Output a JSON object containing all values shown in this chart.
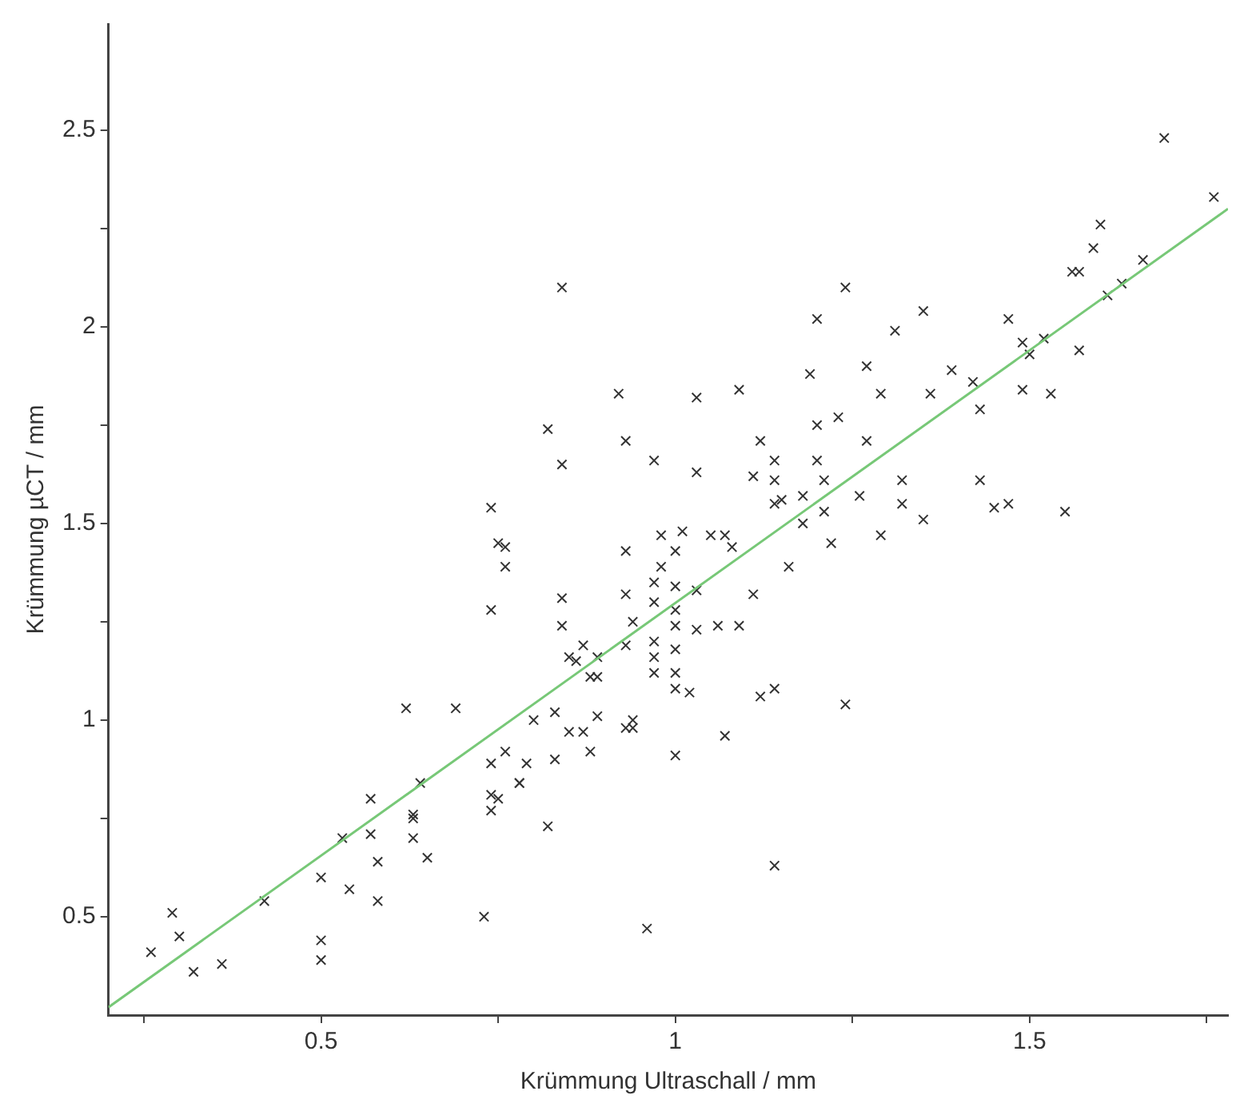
{
  "chart_data": {
    "type": "scatter",
    "xlabel": "Krümmung Ultraschall / mm",
    "ylabel": "Krümmung µCT / mm",
    "xlim": [
      0.2,
      1.78
    ],
    "ylim": [
      0.25,
      2.77
    ],
    "xticks": [
      {
        "value": 0.25,
        "label": null
      },
      0.5,
      {
        "value": 0.75,
        "label": null
      },
      {
        "value": 1,
        "label": "1"
      },
      {
        "value": 1.25,
        "label": null
      },
      1.5,
      {
        "value": 1.75,
        "label": null
      }
    ],
    "yticks": [
      0.5,
      {
        "value": 0.75,
        "label": null
      },
      {
        "value": 1,
        "label": "1"
      },
      {
        "value": 1.25,
        "label": null
      },
      1.5,
      {
        "value": 1.75,
        "label": null
      },
      {
        "value": 2,
        "label": "2"
      },
      {
        "value": 2.25,
        "label": null
      },
      2.5
    ],
    "grid": false,
    "legend": false,
    "marker": "cross",
    "series": [
      {
        "color": "#333333",
        "x": [
          0.74,
          0.75,
          0.84,
          1.24,
          1.2,
          1.19,
          1.27,
          0.92,
          1.03,
          1.09,
          0.82,
          0.93,
          1.2,
          1.23,
          1.27,
          1.12,
          0.84,
          0.97,
          1.03,
          1.14,
          1.11,
          1.14,
          1.2,
          1.21,
          1.26,
          1.15,
          1.14,
          1.18,
          1.21,
          1.18,
          0.76,
          0.98,
          1.01,
          1.05,
          1.07,
          1.08,
          0.93,
          1.0,
          1.22,
          1.69,
          1.76,
          1.6,
          1.59,
          1.56,
          1.57,
          1.66,
          1.63,
          1.61,
          1.35,
          1.31,
          1.47,
          1.49,
          1.52,
          1.5,
          1.57,
          1.39,
          1.29,
          1.36,
          1.42,
          1.43,
          1.49,
          1.53,
          1.32,
          1.43,
          1.32,
          1.35,
          1.45,
          1.47,
          1.55,
          1.29,
          0.26,
          0.29,
          0.3,
          0.32,
          0.36,
          0.42,
          0.5,
          0.5,
          0.5,
          0.54,
          0.53,
          0.57,
          0.57,
          0.58,
          0.58,
          0.64,
          0.63,
          0.63,
          0.63,
          0.65,
          0.62,
          0.69,
          0.73,
          0.74,
          0.74,
          0.74,
          0.74,
          0.76,
          0.98,
          0.97,
          1.16,
          0.84,
          0.84,
          0.93,
          0.97,
          1.0,
          1.03,
          1.0,
          1.11,
          0.94,
          1.0,
          1.03,
          1.06,
          1.09,
          0.87,
          0.85,
          0.86,
          0.89,
          0.93,
          0.97,
          0.97,
          0.97,
          1.0,
          1.0,
          1.0,
          1.02,
          0.88,
          0.89,
          1.12,
          1.14,
          1.24,
          0.8,
          0.83,
          0.85,
          0.87,
          0.89,
          0.93,
          0.94,
          0.94,
          0.88,
          0.83,
          1.07,
          1.0,
          0.76,
          0.79,
          0.78,
          0.78,
          0.75,
          0.82,
          1.14,
          0.96
        ],
        "values": [
          1.54,
          1.45,
          2.1,
          2.1,
          2.02,
          1.88,
          1.9,
          1.83,
          1.82,
          1.84,
          1.74,
          1.71,
          1.75,
          1.77,
          1.71,
          1.71,
          1.65,
          1.66,
          1.63,
          1.66,
          1.62,
          1.61,
          1.66,
          1.61,
          1.57,
          1.56,
          1.55,
          1.57,
          1.53,
          1.5,
          1.44,
          1.47,
          1.48,
          1.47,
          1.47,
          1.44,
          1.43,
          1.43,
          1.45,
          2.48,
          2.33,
          2.26,
          2.2,
          2.14,
          2.14,
          2.17,
          2.11,
          2.08,
          2.04,
          1.99,
          2.02,
          1.96,
          1.97,
          1.93,
          1.94,
          1.89,
          1.83,
          1.83,
          1.86,
          1.79,
          1.84,
          1.83,
          1.61,
          1.61,
          1.55,
          1.51,
          1.54,
          1.55,
          1.53,
          1.47,
          0.41,
          0.51,
          0.45,
          0.36,
          0.38,
          0.54,
          0.6,
          0.44,
          0.39,
          0.57,
          0.7,
          0.8,
          0.71,
          0.64,
          0.54,
          0.84,
          0.76,
          0.75,
          0.7,
          0.65,
          1.03,
          1.03,
          0.5,
          0.89,
          0.81,
          0.77,
          1.28,
          1.39,
          1.39,
          1.35,
          1.39,
          1.31,
          1.24,
          1.32,
          1.3,
          1.34,
          1.33,
          1.28,
          1.32,
          1.25,
          1.24,
          1.23,
          1.24,
          1.24,
          1.19,
          1.16,
          1.15,
          1.16,
          1.19,
          1.2,
          1.16,
          1.12,
          1.18,
          1.12,
          1.08,
          1.07,
          1.11,
          1.11,
          1.06,
          1.08,
          1.04,
          1.0,
          1.02,
          0.97,
          0.97,
          1.01,
          0.98,
          1.0,
          0.98,
          0.92,
          0.9,
          0.96,
          0.91,
          0.92,
          0.89,
          0.84,
          0.84,
          0.8,
          0.73,
          0.63,
          0.47
        ]
      },
      {
        "type": "line",
        "color": "#77c877",
        "x": [
          0.2,
          1.78
        ],
        "values": [
          0.27,
          2.3
        ],
        "marker": "none"
      }
    ]
  }
}
